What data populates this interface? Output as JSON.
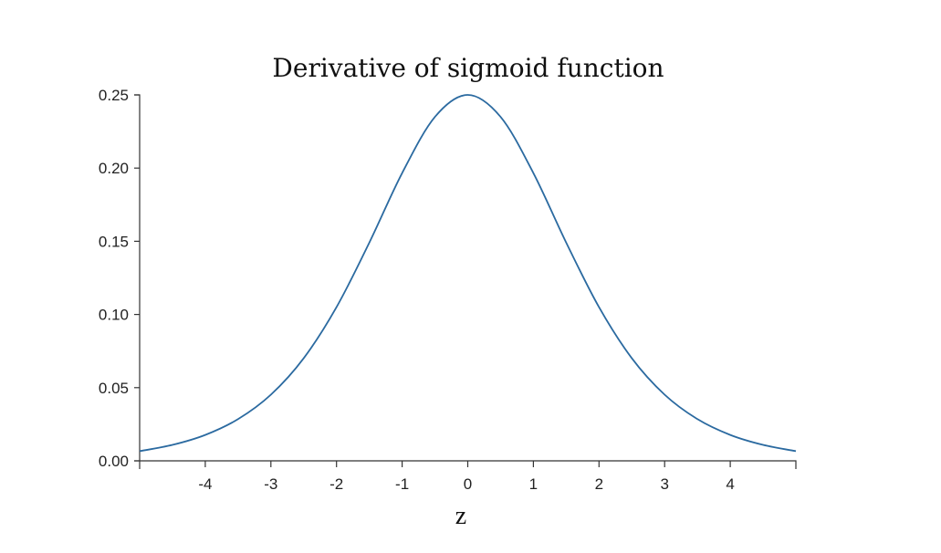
{
  "chart_data": {
    "type": "line",
    "title": "Derivative of sigmoid function",
    "xlabel": "z",
    "ylabel": "",
    "xlim": [
      -5,
      5
    ],
    "ylim": [
      0,
      0.25
    ],
    "grid": false,
    "x_ticks": [
      -4,
      -3,
      -2,
      -1,
      0,
      1,
      2,
      3,
      4
    ],
    "x_tick_labels": [
      "-4",
      "-3",
      "-2",
      "-1",
      "0",
      "1",
      "2",
      "3",
      "4"
    ],
    "y_ticks": [
      0,
      0.05,
      0.1,
      0.15,
      0.2,
      0.25
    ],
    "y_tick_labels": [
      "0.00",
      "0.05",
      "0.10",
      "0.15",
      "0.20",
      "0.25"
    ],
    "series": [
      {
        "color": "#2b6aa0",
        "x": [
          -5,
          -4.5,
          -4,
          -3.5,
          -3,
          -2.5,
          -2,
          -1.5,
          -1,
          -0.5,
          0,
          0.5,
          1,
          1.5,
          2,
          2.5,
          3,
          3.5,
          4,
          4.5,
          5
        ],
        "values": [
          0.0066,
          0.0109,
          0.0177,
          0.0285,
          0.0452,
          0.0701,
          0.105,
          0.1491,
          0.1966,
          0.235,
          0.25,
          0.235,
          0.1966,
          0.1491,
          0.105,
          0.0701,
          0.0452,
          0.0285,
          0.0177,
          0.0109,
          0.0066
        ]
      }
    ]
  }
}
